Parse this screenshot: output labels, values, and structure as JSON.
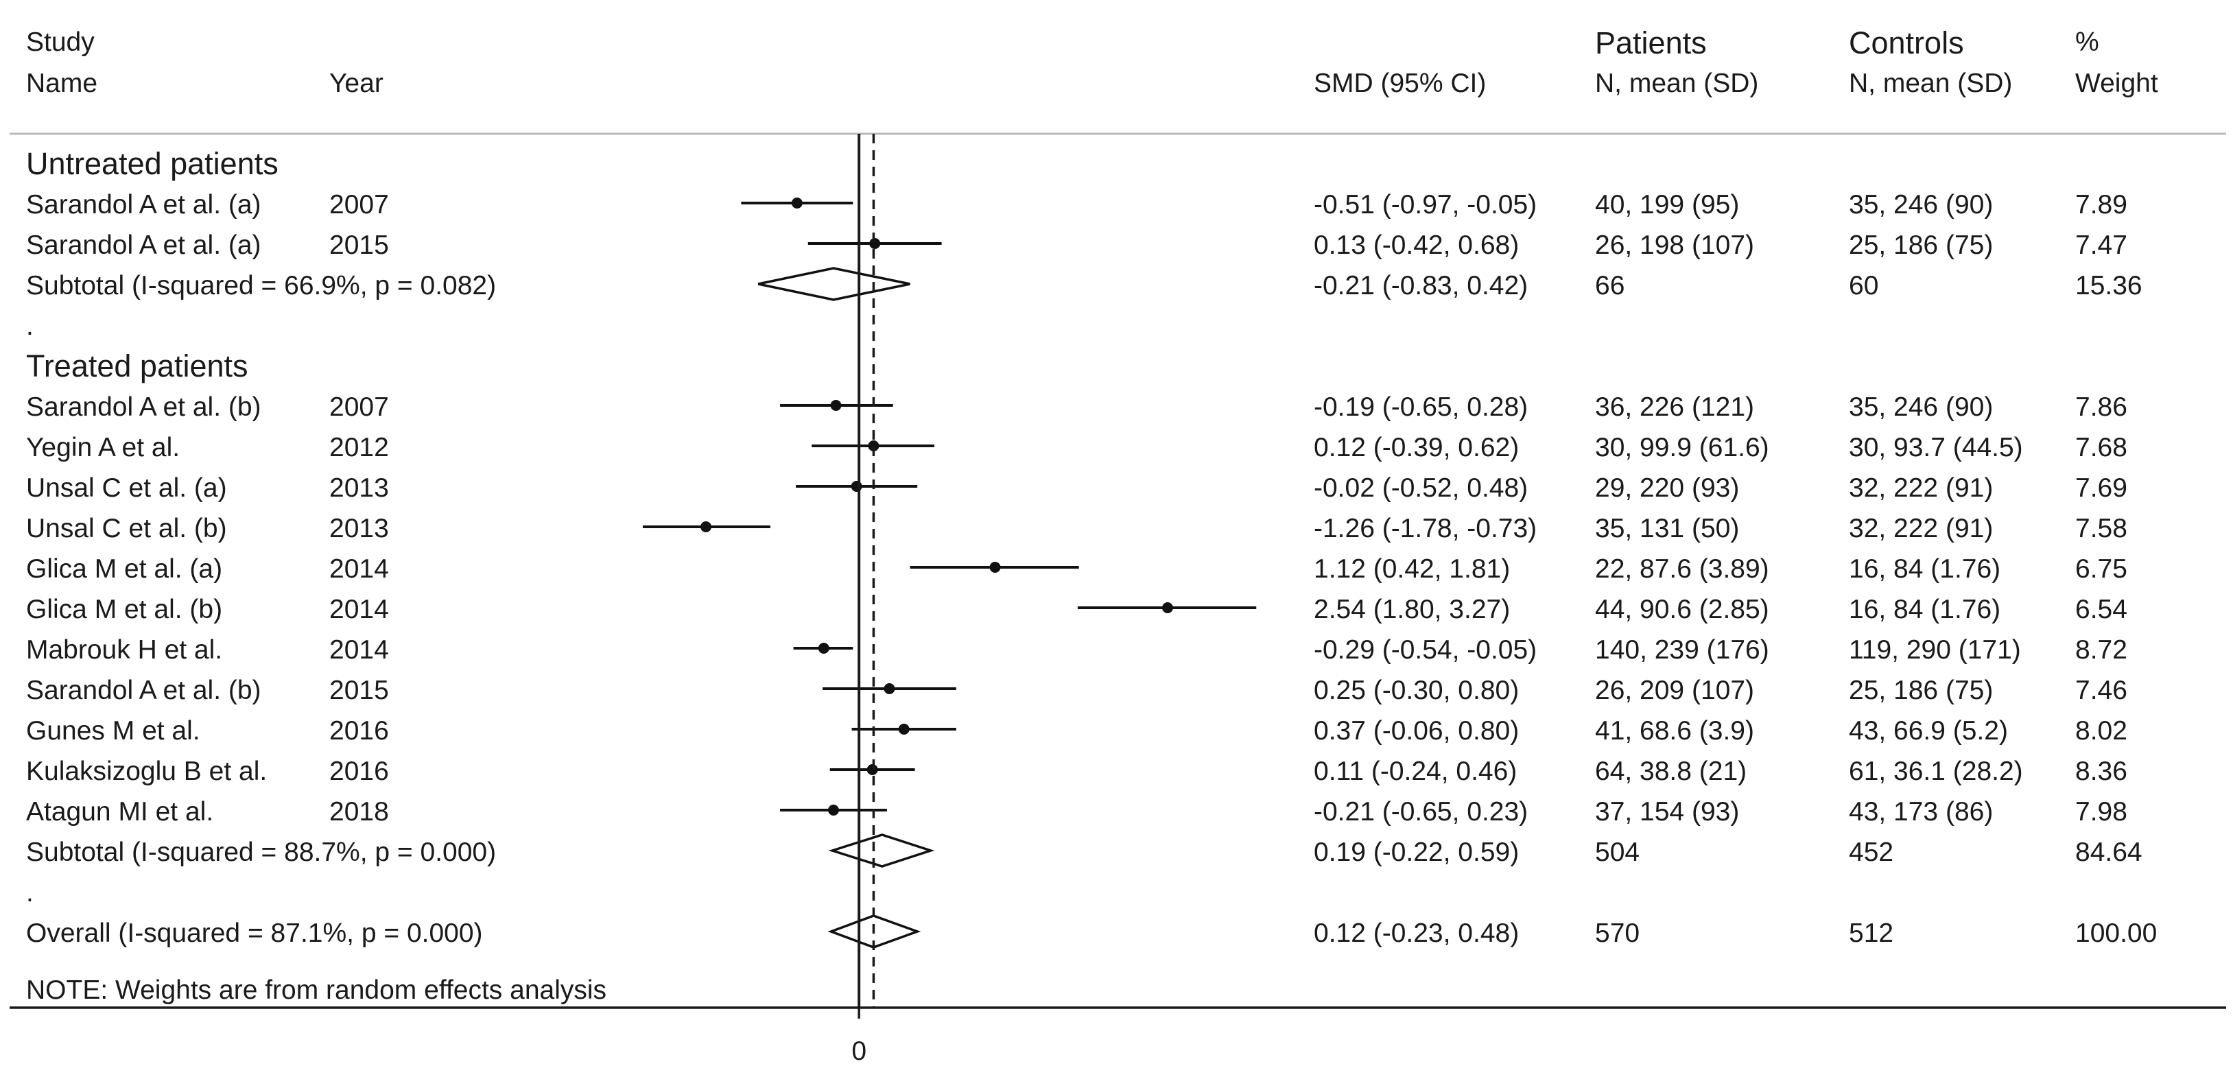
{
  "chart_data": {
    "type": "forest",
    "headers": {
      "study_line1": "Study",
      "study_line2": "Name",
      "year": "Year",
      "smd": "SMD (95% CI)",
      "patients_line1": "Patients",
      "patients_line2": "N, mean (SD)",
      "controls_line1": "Controls",
      "controls_line2": "N, mean (SD)",
      "weight_line1": "%",
      "weight_line2": "Weight"
    },
    "axis": {
      "xmin": -2.0,
      "xmax": 3.63,
      "zero_tick_label": "0",
      "overall_effect": 0.12
    },
    "rows": [
      {
        "kind": "group",
        "label": "Untreated patients"
      },
      {
        "kind": "study",
        "name": "Sarandol A et al.  (a)",
        "year": "2007",
        "est": -0.51,
        "lo": -0.97,
        "hi": -0.05,
        "ci_text": "-0.51 (-0.97, -0.05)",
        "patients": "40, 199 (95)",
        "controls": "35, 246 (90)",
        "weight": "7.89"
      },
      {
        "kind": "study",
        "name": "Sarandol A et al.  (a)",
        "year": "2015",
        "est": 0.13,
        "lo": -0.42,
        "hi": 0.68,
        "ci_text": "0.13 (-0.42, 0.68)",
        "patients": "26, 198 (107)",
        "controls": "25, 186 (75)",
        "weight": "7.47"
      },
      {
        "kind": "subtotal",
        "label": "Subtotal  (I-squared = 66.9%, p = 0.082)",
        "est": -0.21,
        "lo": -0.83,
        "hi": 0.42,
        "ci_text": "-0.21 (-0.83, 0.42)",
        "patients": "66",
        "controls": "60",
        "weight": "15.36"
      },
      {
        "kind": "dot",
        "label": "."
      },
      {
        "kind": "group",
        "label": "Treated patients"
      },
      {
        "kind": "study",
        "name": "Sarandol A et al. (b)",
        "year": "2007",
        "est": -0.19,
        "lo": -0.65,
        "hi": 0.28,
        "ci_text": "-0.19 (-0.65, 0.28)",
        "patients": "36, 226 (121)",
        "controls": "35, 246 (90)",
        "weight": "7.86"
      },
      {
        "kind": "study",
        "name": "Yegin A et al.",
        "year": "2012",
        "est": 0.12,
        "lo": -0.39,
        "hi": 0.62,
        "ci_text": "0.12 (-0.39, 0.62)",
        "patients": "30, 99.9 (61.6)",
        "controls": "30, 93.7 (44.5)",
        "weight": "7.68"
      },
      {
        "kind": "study",
        "name": "Unsal C et al. (a)",
        "year": "2013",
        "est": -0.02,
        "lo": -0.52,
        "hi": 0.48,
        "ci_text": "-0.02 (-0.52, 0.48)",
        "patients": "29, 220 (93)",
        "controls": "32, 222 (91)",
        "weight": "7.69"
      },
      {
        "kind": "study",
        "name": "Unsal C et al. (b)",
        "year": "2013",
        "est": -1.26,
        "lo": -1.78,
        "hi": -0.73,
        "ci_text": "-1.26 (-1.78, -0.73)",
        "patients": "35, 131 (50)",
        "controls": "32, 222 (91)",
        "weight": "7.58"
      },
      {
        "kind": "study",
        "name": "Glica M et al. (a)",
        "year": "2014",
        "est": 1.12,
        "lo": 0.42,
        "hi": 1.81,
        "ci_text": "1.12 (0.42, 1.81)",
        "patients": "22, 87.6 (3.89)",
        "controls": "16, 84 (1.76)",
        "weight": "6.75"
      },
      {
        "kind": "study",
        "name": "Glica M et al. (b)",
        "year": "2014",
        "est": 2.54,
        "lo": 1.8,
        "hi": 3.27,
        "ci_text": "2.54 (1.80, 3.27)",
        "patients": "44, 90.6 (2.85)",
        "controls": "16, 84 (1.76)",
        "weight": "6.54"
      },
      {
        "kind": "study",
        "name": "Mabrouk H et al.",
        "year": "2014",
        "est": -0.29,
        "lo": -0.54,
        "hi": -0.05,
        "ci_text": "-0.29 (-0.54, -0.05)",
        "patients": "140, 239 (176)",
        "controls": "119, 290 (171)",
        "weight": "8.72"
      },
      {
        "kind": "study",
        "name": "Sarandol A et al. (b)",
        "year": "2015",
        "est": 0.25,
        "lo": -0.3,
        "hi": 0.8,
        "ci_text": "0.25 (-0.30, 0.80)",
        "patients": "26, 209 (107)",
        "controls": "25, 186 (75)",
        "weight": "7.46"
      },
      {
        "kind": "study",
        "name": "Gunes M et al.",
        "year": "2016",
        "est": 0.37,
        "lo": -0.06,
        "hi": 0.8,
        "ci_text": "0.37 (-0.06, 0.80)",
        "patients": "41, 68.6 (3.9)",
        "controls": "43, 66.9 (5.2)",
        "weight": "8.02"
      },
      {
        "kind": "study",
        "name": "Kulaksizoglu B et al.",
        "year": "2016",
        "est": 0.11,
        "lo": -0.24,
        "hi": 0.46,
        "ci_text": "0.11 (-0.24, 0.46)",
        "patients": "64, 38.8 (21)",
        "controls": "61, 36.1 (28.2)",
        "weight": "8.36"
      },
      {
        "kind": "study",
        "name": "Atagun MI et al.",
        "year": "2018",
        "est": -0.21,
        "lo": -0.65,
        "hi": 0.23,
        "ci_text": "-0.21 (-0.65, 0.23)",
        "patients": "37, 154 (93)",
        "controls": "43, 173 (86)",
        "weight": "7.98"
      },
      {
        "kind": "subtotal",
        "label": "Subtotal  (I-squared = 88.7%, p = 0.000)",
        "est": 0.19,
        "lo": -0.22,
        "hi": 0.59,
        "ci_text": "0.19 (-0.22, 0.59)",
        "patients": "504",
        "controls": "452",
        "weight": "84.64"
      },
      {
        "kind": "dot",
        "label": "."
      },
      {
        "kind": "overall",
        "label": "Overall  (I-squared = 87.1%, p = 0.000)",
        "est": 0.12,
        "lo": -0.23,
        "hi": 0.48,
        "ci_text": "0.12 (-0.23, 0.48)",
        "patients": "570",
        "controls": "512",
        "weight": "100.00"
      }
    ],
    "note": "NOTE: Weights are from random effects analysis"
  }
}
